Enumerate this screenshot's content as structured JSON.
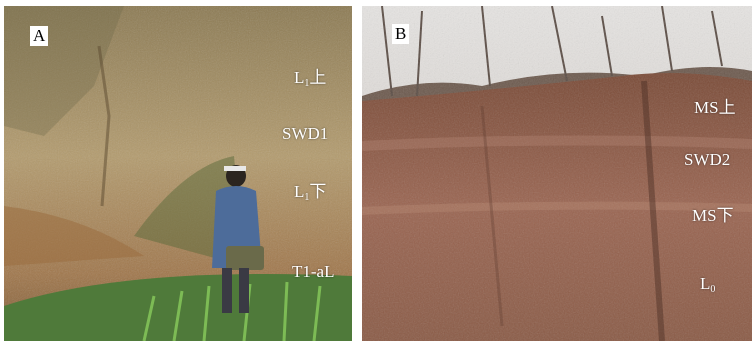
{
  "panels": [
    {
      "letter": "A",
      "labels": [
        {
          "base": "L",
          "sub": "1",
          "suffix": "上"
        },
        {
          "base": "SWD1",
          "sub": "",
          "suffix": ""
        },
        {
          "base": "L",
          "sub": "1",
          "suffix": "下"
        },
        {
          "base": "T1-aL",
          "sub": "",
          "suffix": ""
        }
      ]
    },
    {
      "letter": "B",
      "labels": [
        {
          "base": "MS",
          "sub": "",
          "suffix": "上"
        },
        {
          "base": "SWD2",
          "sub": "",
          "suffix": ""
        },
        {
          "base": "MS",
          "sub": "",
          "suffix": "下"
        },
        {
          "base": "L",
          "sub": "0",
          "suffix": ""
        }
      ]
    }
  ]
}
